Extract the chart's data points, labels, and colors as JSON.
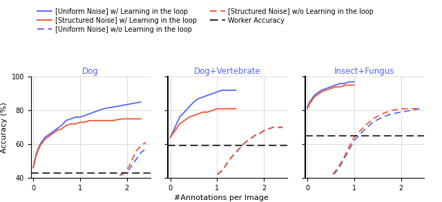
{
  "subplots": [
    {
      "title": "Dog",
      "ylim": [
        40,
        100
      ],
      "xlim": [
        -0.05,
        2.5
      ],
      "yticks": [
        40,
        60,
        80,
        100
      ],
      "xticks": [
        0,
        1,
        2
      ],
      "worker_accuracy": 43,
      "uniform_with": {
        "x": [
          0.0,
          0.03,
          0.06,
          0.1,
          0.13,
          0.17,
          0.2,
          0.25,
          0.3,
          0.35,
          0.4,
          0.45,
          0.5,
          0.6,
          0.7,
          0.8,
          0.9,
          1.0,
          1.1,
          1.2,
          1.3,
          1.5,
          1.7,
          1.9,
          2.1,
          2.3
        ],
        "y": [
          46,
          50,
          54,
          57,
          59,
          61,
          62,
          64,
          65,
          66,
          67,
          68,
          69,
          71,
          74,
          75,
          76,
          76,
          77,
          78,
          79,
          81,
          82,
          83,
          84,
          85
        ]
      },
      "structured_with": {
        "x": [
          0.0,
          0.03,
          0.06,
          0.1,
          0.13,
          0.17,
          0.2,
          0.25,
          0.3,
          0.35,
          0.4,
          0.45,
          0.5,
          0.6,
          0.7,
          0.8,
          0.9,
          1.0,
          1.1,
          1.2,
          1.3,
          1.5,
          1.7,
          1.9,
          2.1,
          2.3
        ],
        "y": [
          46,
          50,
          53,
          56,
          58,
          60,
          61,
          63,
          64,
          65,
          66,
          67,
          68,
          69,
          71,
          72,
          72,
          73,
          73,
          74,
          74,
          74,
          74,
          75,
          75,
          75
        ]
      },
      "uniform_without": {
        "x": [
          1.85,
          1.9,
          1.95,
          2.0,
          2.05,
          2.1,
          2.15,
          2.2,
          2.3,
          2.4
        ],
        "y": [
          41.5,
          42,
          43,
          44,
          45,
          47,
          49,
          51,
          55,
          57
        ]
      },
      "structured_without": {
        "x": [
          1.85,
          1.9,
          1.95,
          2.0,
          2.05,
          2.1,
          2.15,
          2.2,
          2.3,
          2.4
        ],
        "y": [
          41.5,
          42,
          43,
          45,
          47,
          50,
          53,
          56,
          59,
          61
        ]
      }
    },
    {
      "title": "Dog+Vertebrate",
      "ylim": [
        40,
        100
      ],
      "xlim": [
        -0.05,
        2.5
      ],
      "yticks": [
        40,
        60,
        80,
        100
      ],
      "xticks": [
        0,
        1,
        2
      ],
      "worker_accuracy": 59,
      "uniform_with": {
        "x": [
          0.0,
          0.05,
          0.1,
          0.15,
          0.2,
          0.3,
          0.4,
          0.5,
          0.6,
          0.7,
          0.8,
          0.9,
          1.0,
          1.1,
          1.2,
          1.3,
          1.4
        ],
        "y": [
          64,
          67,
          70,
          73,
          76,
          79,
          82,
          85,
          87,
          88,
          89,
          90,
          91,
          92,
          92,
          92,
          92
        ]
      },
      "structured_with": {
        "x": [
          0.0,
          0.05,
          0.1,
          0.15,
          0.2,
          0.3,
          0.4,
          0.5,
          0.6,
          0.7,
          0.8,
          0.9,
          1.0,
          1.1,
          1.2,
          1.3,
          1.4
        ],
        "y": [
          64,
          66,
          68,
          70,
          72,
          74,
          76,
          77,
          78,
          79,
          79,
          80,
          81,
          81,
          81,
          81,
          81
        ]
      },
      "uniform_without": {
        "x": [
          1.0,
          1.05,
          1.1,
          1.15,
          1.2,
          1.3,
          1.4,
          1.5,
          1.6,
          1.7,
          1.8,
          1.9,
          2.0,
          2.1,
          2.2,
          2.3,
          2.4
        ],
        "y": [
          42,
          43,
          44,
          46,
          48,
          52,
          55,
          58,
          61,
          63,
          65,
          66,
          68,
          69,
          70,
          70,
          70
        ]
      },
      "structured_without": {
        "x": [
          1.0,
          1.05,
          1.1,
          1.15,
          1.2,
          1.3,
          1.4,
          1.5,
          1.6,
          1.7,
          1.8,
          1.9,
          2.0,
          2.1,
          2.2,
          2.3,
          2.4
        ],
        "y": [
          42,
          43,
          44,
          46,
          48,
          52,
          55,
          58,
          61,
          63,
          65,
          66,
          68,
          69,
          70,
          70,
          70
        ]
      }
    },
    {
      "title": "Insect+Fungus",
      "ylim": [
        40,
        100
      ],
      "xlim": [
        -0.05,
        2.5
      ],
      "yticks": [
        40,
        60,
        80,
        100
      ],
      "xticks": [
        0,
        1,
        2
      ],
      "worker_accuracy": 65,
      "uniform_with": {
        "x": [
          0.0,
          0.05,
          0.1,
          0.15,
          0.2,
          0.3,
          0.4,
          0.5,
          0.6,
          0.7,
          0.8,
          0.9,
          1.0
        ],
        "y": [
          82,
          85,
          87,
          89,
          90,
          92,
          93,
          94,
          95,
          96,
          96,
          97,
          97
        ]
      },
      "structured_with": {
        "x": [
          0.0,
          0.05,
          0.1,
          0.15,
          0.2,
          0.3,
          0.4,
          0.5,
          0.6,
          0.7,
          0.8,
          0.9,
          1.0
        ],
        "y": [
          81,
          84,
          86,
          88,
          89,
          91,
          92,
          93,
          94,
          94,
          95,
          95,
          95
        ]
      },
      "uniform_without": {
        "x": [
          0.55,
          0.6,
          0.65,
          0.7,
          0.8,
          0.9,
          1.0,
          1.2,
          1.4,
          1.6,
          1.8,
          2.0,
          2.2,
          2.4
        ],
        "y": [
          42,
          43,
          45,
          47,
          52,
          57,
          62,
          68,
          73,
          76,
          78,
          79,
          80,
          81
        ]
      },
      "structured_without": {
        "x": [
          0.55,
          0.6,
          0.65,
          0.7,
          0.8,
          0.9,
          1.0,
          1.2,
          1.4,
          1.6,
          1.8,
          2.0,
          2.2,
          2.4
        ],
        "y": [
          42,
          44,
          46,
          48,
          53,
          59,
          64,
          70,
          75,
          78,
          80,
          81,
          81,
          81
        ]
      }
    }
  ],
  "xlabel": "#Annotations per Image",
  "ylabel": "Accuracy (%)",
  "blue_color": "#5566ee",
  "red_color": "#ee5533",
  "black_color": "#222222",
  "legend_labels": [
    "[Uniform Noise] w/ Learning in the loop",
    "[Structured Noise] w/ Learning in the loop",
    "[Uniform Noise] w/o Learning in the loop",
    "[Structured Noise] w/o Learning in the loop",
    "Worker Accuracy"
  ]
}
